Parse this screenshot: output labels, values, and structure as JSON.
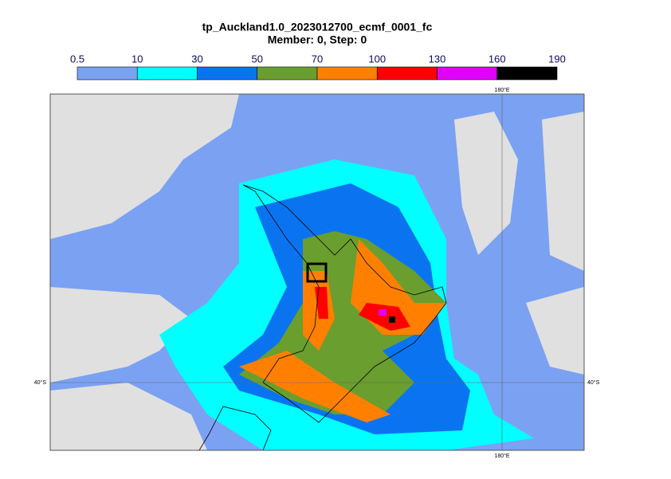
{
  "title": "tp_Auckland1.0_2023012700_ecmf_0001_fc",
  "subtitle": "Member: 0, Step: 0",
  "colorbar": {
    "levels": [
      0.5,
      10,
      30,
      50,
      70,
      100,
      130,
      160,
      190
    ],
    "colors": [
      "#7ba1f2",
      "#00ffff",
      "#0a74f0",
      "#6a9e2e",
      "#ff8000",
      "#ff0000",
      "#e000ff",
      "#000000"
    ]
  },
  "map": {
    "land_color": "#e0e0e0",
    "lon_labels": [
      "180°E",
      "180°E"
    ],
    "lat_labels": [
      "40°S",
      "40°S"
    ]
  }
}
